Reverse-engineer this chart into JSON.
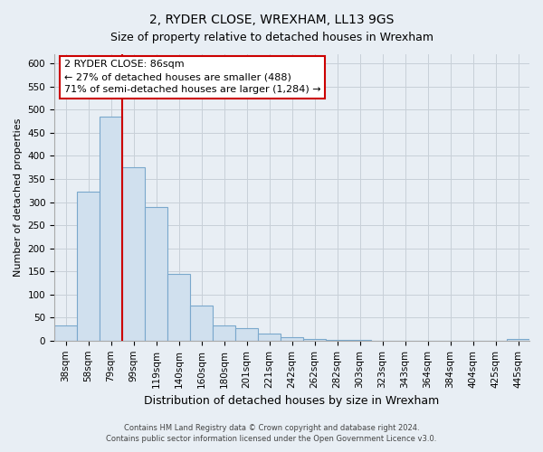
{
  "title": "2, RYDER CLOSE, WREXHAM, LL13 9GS",
  "subtitle": "Size of property relative to detached houses in Wrexham",
  "xlabel": "Distribution of detached houses by size in Wrexham",
  "ylabel": "Number of detached properties",
  "bar_labels": [
    "38sqm",
    "58sqm",
    "79sqm",
    "99sqm",
    "119sqm",
    "140sqm",
    "160sqm",
    "180sqm",
    "201sqm",
    "221sqm",
    "242sqm",
    "262sqm",
    "282sqm",
    "303sqm",
    "323sqm",
    "343sqm",
    "364sqm",
    "384sqm",
    "404sqm",
    "425sqm",
    "445sqm"
  ],
  "bar_values": [
    32,
    323,
    484,
    375,
    290,
    145,
    75,
    32,
    28,
    15,
    7,
    3,
    1,
    1,
    0,
    0,
    0,
    0,
    0,
    0,
    3
  ],
  "bar_color": "#d0e0ee",
  "bar_edge_color": "#7aa8cc",
  "vline_x_index": 2.5,
  "vline_color": "#cc0000",
  "annotation_text_line1": "2 RYDER CLOSE: 86sqm",
  "annotation_text_line2": "← 27% of detached houses are smaller (488)",
  "annotation_text_line3": "71% of semi-detached houses are larger (1,284) →",
  "annotation_box_facecolor": "#ffffff",
  "annotation_box_edgecolor": "#cc0000",
  "ylim": [
    0,
    620
  ],
  "yticks": [
    0,
    50,
    100,
    150,
    200,
    250,
    300,
    350,
    400,
    450,
    500,
    550,
    600
  ],
  "footer_line1": "Contains HM Land Registry data © Crown copyright and database right 2024.",
  "footer_line2": "Contains public sector information licensed under the Open Government Licence v3.0.",
  "fig_facecolor": "#e8eef4",
  "plot_facecolor": "#e8eef4",
  "grid_color": "#c8d0d8",
  "title_fontsize": 10,
  "subtitle_fontsize": 9,
  "ylabel_fontsize": 8,
  "xlabel_fontsize": 9,
  "tick_fontsize": 7.5,
  "footer_fontsize": 6,
  "ann_fontsize": 8
}
